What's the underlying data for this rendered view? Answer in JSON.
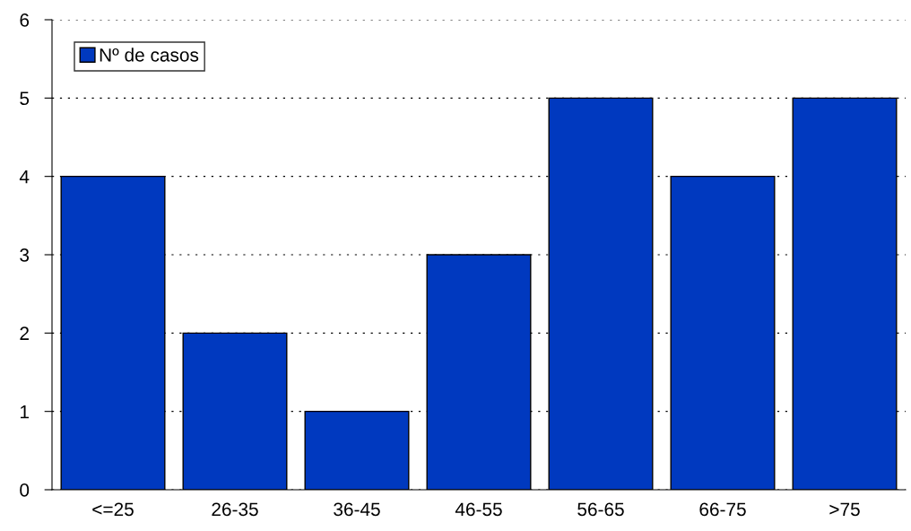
{
  "chart_data": {
    "type": "bar",
    "categories": [
      "<=25",
      "26-35",
      "36-45",
      "46-55",
      "56-65",
      "66-75",
      ">75"
    ],
    "series": [
      {
        "name": "Nº de casos",
        "color": "#0039bf",
        "values": [
          4,
          2,
          1,
          3,
          5,
          4,
          5
        ]
      }
    ],
    "ylim": [
      0,
      6
    ],
    "yticks": [
      0,
      1,
      2,
      3,
      4,
      5,
      6
    ],
    "grid": "y",
    "legend": "top left"
  }
}
